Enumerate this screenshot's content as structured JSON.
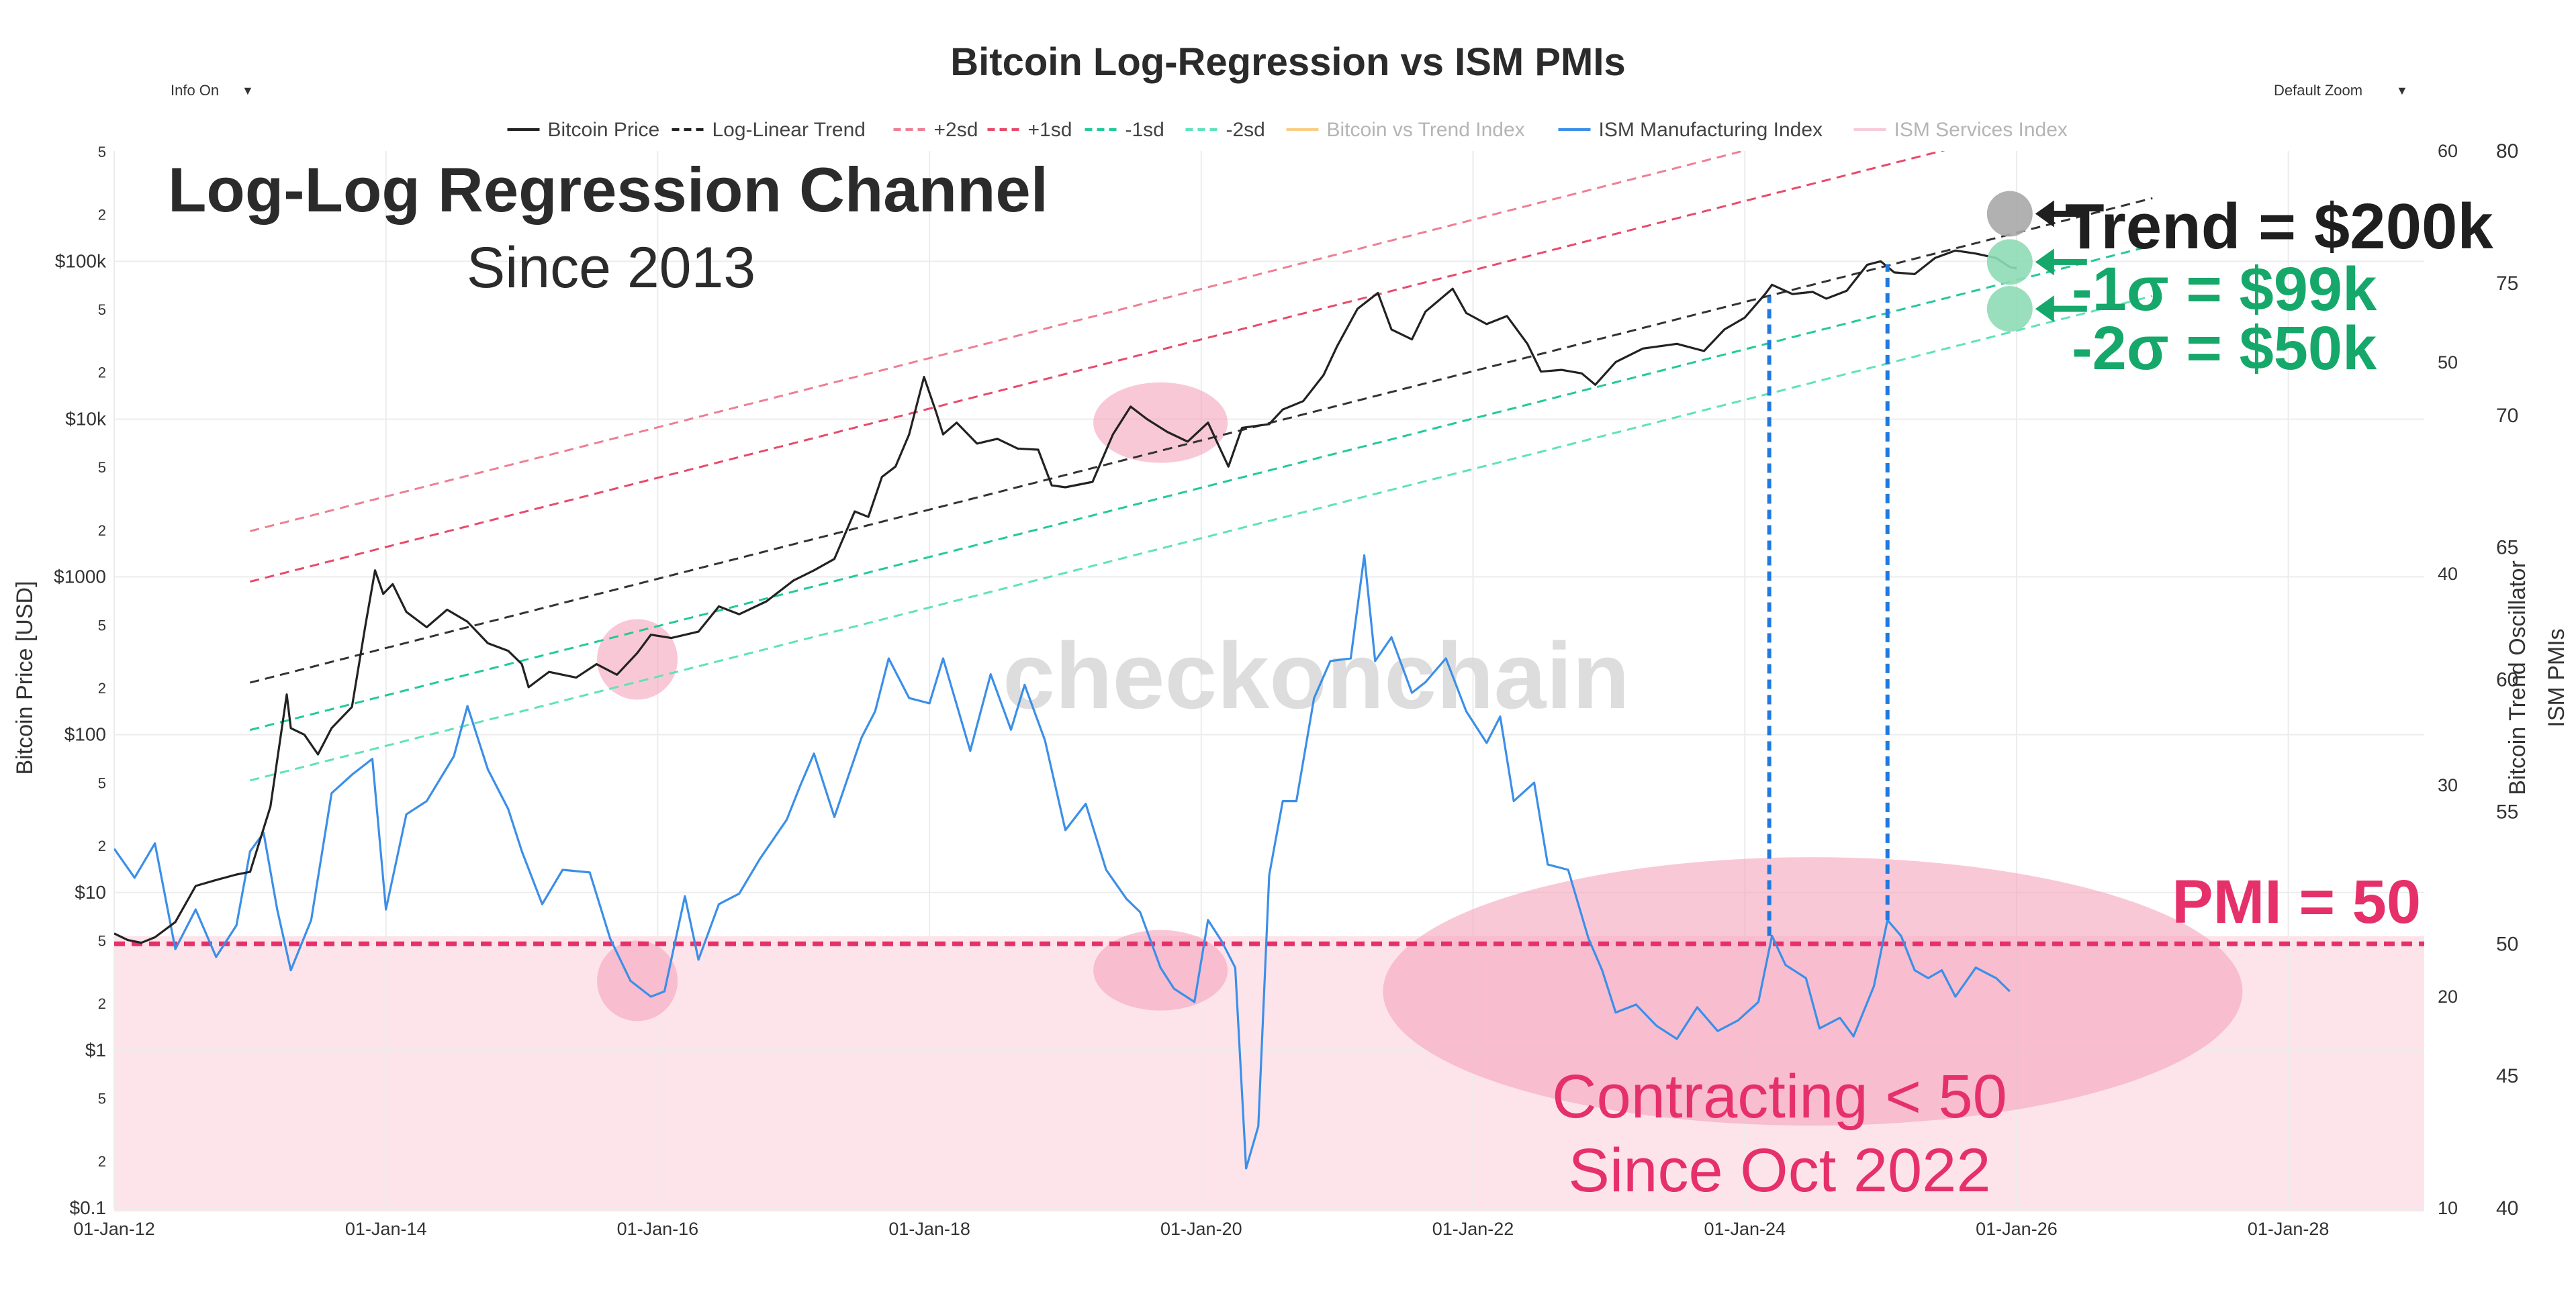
{
  "controls": {
    "info": "Info On",
    "zoom": "Default Zoom",
    "caret": "▼"
  },
  "chart_data": {
    "type": "line",
    "title": "Bitcoin Log-Regression vs ISM PMIs",
    "legend": [
      {
        "name": "Bitcoin Price",
        "color": "#222222",
        "dash": "solid",
        "muted": false
      },
      {
        "name": "Log-Linear Trend",
        "color": "#222222",
        "dash": "dashed",
        "muted": false
      },
      {
        "name": "+2sd",
        "color": "#ee7f93",
        "dash": "dashed",
        "muted": false
      },
      {
        "name": "+1sd",
        "color": "#e84a6a",
        "dash": "dashed",
        "muted": false
      },
      {
        "name": "-1sd",
        "color": "#22c99a",
        "dash": "dashed",
        "muted": false
      },
      {
        "name": "-2sd",
        "color": "#5fe2bb",
        "dash": "dashed",
        "muted": false
      },
      {
        "name": "Bitcoin vs Trend Index",
        "color": "#f5a623",
        "dash": "solid",
        "muted": true
      },
      {
        "name": "ISM Manufacturing Index",
        "color": "#3b8fe8",
        "dash": "solid",
        "muted": false
      },
      {
        "name": "ISM Services Index",
        "color": "#f4a0b8",
        "dash": "solid",
        "muted": true
      }
    ],
    "x_axis": {
      "ticks": [
        "01-Jan-12",
        "01-Jan-14",
        "01-Jan-16",
        "01-Jan-18",
        "01-Jan-20",
        "01-Jan-22",
        "01-Jan-24",
        "01-Jan-26",
        "01-Jan-28"
      ],
      "range": [
        2012.0,
        2029.0
      ]
    },
    "y_price": {
      "label": "Bitcoin Price [USD]",
      "scale": "log",
      "range": [
        0.1,
        500000
      ],
      "ticks": [
        {
          "v": 0.1,
          "t": "$0.1"
        },
        {
          "v": 0.2,
          "t": "2"
        },
        {
          "v": 0.5,
          "t": "5"
        },
        {
          "v": 1,
          "t": "$1"
        },
        {
          "v": 2,
          "t": "2"
        },
        {
          "v": 5,
          "t": "5"
        },
        {
          "v": 10,
          "t": "$10"
        },
        {
          "v": 20,
          "t": "2"
        },
        {
          "v": 50,
          "t": "5"
        },
        {
          "v": 100,
          "t": "$100"
        },
        {
          "v": 200,
          "t": "2"
        },
        {
          "v": 500,
          "t": "5"
        },
        {
          "v": 1000,
          "t": "$1000"
        },
        {
          "v": 2000,
          "t": "2"
        },
        {
          "v": 5000,
          "t": "5"
        },
        {
          "v": 10000,
          "t": "$10k"
        },
        {
          "v": 20000,
          "t": "2"
        },
        {
          "v": 50000,
          "t": "5"
        },
        {
          "v": 100000,
          "t": "$100k"
        },
        {
          "v": 200000,
          "t": "2"
        },
        {
          "v": 500000,
          "t": "5"
        }
      ]
    },
    "y_osc": {
      "label": "Bitcoin Trend Oscillator",
      "range": [
        10,
        60
      ],
      "ticks": [
        "10",
        "20",
        "30",
        "40",
        "50",
        "60"
      ]
    },
    "y_pmi": {
      "label": "ISM PMIs",
      "range": [
        40,
        80
      ],
      "ticks": [
        "40",
        "45",
        "50",
        "55",
        "60",
        "65",
        "70",
        "75",
        "80"
      ]
    },
    "trend": {
      "x": [
        2013.0,
        2027.0
      ],
      "log10_price": [
        2.33,
        5.4
      ]
    },
    "band_offsets_log10": {
      "plus2sd": 0.96,
      "plus1sd": 0.64,
      "minus1sd": -0.3,
      "minus2sd": -0.62
    },
    "btc_price": [
      [
        2012.0,
        5.5
      ],
      [
        2012.1,
        5.0
      ],
      [
        2012.2,
        4.8
      ],
      [
        2012.3,
        5.2
      ],
      [
        2012.45,
        6.5
      ],
      [
        2012.6,
        11
      ],
      [
        2012.75,
        12
      ],
      [
        2012.9,
        13
      ],
      [
        2013.0,
        13.5
      ],
      [
        2013.15,
        35
      ],
      [
        2013.27,
        180
      ],
      [
        2013.3,
        110
      ],
      [
        2013.4,
        100
      ],
      [
        2013.5,
        75
      ],
      [
        2013.6,
        110
      ],
      [
        2013.75,
        150
      ],
      [
        2013.85,
        500
      ],
      [
        2013.92,
        1100
      ],
      [
        2013.98,
        780
      ],
      [
        2014.05,
        900
      ],
      [
        2014.15,
        600
      ],
      [
        2014.3,
        480
      ],
      [
        2014.45,
        620
      ],
      [
        2014.6,
        520
      ],
      [
        2014.75,
        380
      ],
      [
        2014.9,
        340
      ],
      [
        2015.0,
        280
      ],
      [
        2015.05,
        200
      ],
      [
        2015.2,
        250
      ],
      [
        2015.4,
        230
      ],
      [
        2015.55,
        280
      ],
      [
        2015.7,
        240
      ],
      [
        2015.85,
        330
      ],
      [
        2015.95,
        430
      ],
      [
        2016.1,
        410
      ],
      [
        2016.3,
        450
      ],
      [
        2016.45,
        650
      ],
      [
        2016.6,
        580
      ],
      [
        2016.8,
        700
      ],
      [
        2017.0,
        950
      ],
      [
        2017.15,
        1100
      ],
      [
        2017.3,
        1300
      ],
      [
        2017.45,
        2600
      ],
      [
        2017.55,
        2400
      ],
      [
        2017.65,
        4300
      ],
      [
        2017.75,
        5000
      ],
      [
        2017.85,
        8000
      ],
      [
        2017.96,
        18500
      ],
      [
        2018.05,
        11000
      ],
      [
        2018.1,
        8000
      ],
      [
        2018.2,
        9500
      ],
      [
        2018.35,
        7000
      ],
      [
        2018.5,
        7500
      ],
      [
        2018.65,
        6500
      ],
      [
        2018.8,
        6400
      ],
      [
        2018.9,
        3800
      ],
      [
        2019.0,
        3700
      ],
      [
        2019.2,
        4000
      ],
      [
        2019.35,
        8000
      ],
      [
        2019.48,
        12000
      ],
      [
        2019.6,
        10000
      ],
      [
        2019.75,
        8300
      ],
      [
        2019.9,
        7200
      ],
      [
        2020.05,
        9500
      ],
      [
        2020.2,
        5000
      ],
      [
        2020.3,
        8800
      ],
      [
        2020.5,
        9300
      ],
      [
        2020.6,
        11500
      ],
      [
        2020.75,
        13000
      ],
      [
        2020.9,
        19000
      ],
      [
        2021.0,
        29000
      ],
      [
        2021.15,
        50000
      ],
      [
        2021.3,
        63000
      ],
      [
        2021.4,
        37000
      ],
      [
        2021.55,
        32000
      ],
      [
        2021.65,
        48000
      ],
      [
        2021.85,
        67000
      ],
      [
        2021.95,
        47000
      ],
      [
        2022.1,
        40000
      ],
      [
        2022.25,
        45000
      ],
      [
        2022.4,
        30000
      ],
      [
        2022.5,
        20000
      ],
      [
        2022.65,
        20500
      ],
      [
        2022.8,
        19500
      ],
      [
        2022.9,
        16500
      ],
      [
        2023.05,
        23000
      ],
      [
        2023.25,
        28000
      ],
      [
        2023.5,
        30000
      ],
      [
        2023.7,
        27000
      ],
      [
        2023.85,
        37000
      ],
      [
        2024.0,
        44000
      ],
      [
        2024.15,
        62000
      ],
      [
        2024.2,
        71000
      ],
      [
        2024.35,
        62000
      ],
      [
        2024.5,
        64000
      ],
      [
        2024.6,
        58000
      ],
      [
        2024.75,
        65000
      ],
      [
        2024.9,
        95000
      ],
      [
        2025.0,
        100000
      ],
      [
        2025.1,
        85000
      ],
      [
        2025.25,
        83000
      ],
      [
        2025.4,
        105000
      ],
      [
        2025.55,
        117000
      ],
      [
        2025.7,
        112000
      ],
      [
        2025.85,
        105000
      ],
      [
        2025.95,
        92000
      ],
      [
        2026.0,
        90000
      ]
    ],
    "ism_manufacturing": [
      [
        2012.0,
        53.6
      ],
      [
        2012.15,
        52.5
      ],
      [
        2012.3,
        53.8
      ],
      [
        2012.45,
        49.8
      ],
      [
        2012.6,
        51.3
      ],
      [
        2012.75,
        49.5
      ],
      [
        2012.9,
        50.7
      ],
      [
        2013.0,
        53.5
      ],
      [
        2013.1,
        54.2
      ],
      [
        2013.2,
        51.3
      ],
      [
        2013.3,
        49.0
      ],
      [
        2013.45,
        50.9
      ],
      [
        2013.6,
        55.7
      ],
      [
        2013.75,
        56.4
      ],
      [
        2013.9,
        57.0
      ],
      [
        2014.0,
        51.3
      ],
      [
        2014.15,
        54.9
      ],
      [
        2014.3,
        55.4
      ],
      [
        2014.5,
        57.1
      ],
      [
        2014.6,
        59.0
      ],
      [
        2014.75,
        56.6
      ],
      [
        2014.9,
        55.1
      ],
      [
        2015.0,
        53.5
      ],
      [
        2015.15,
        51.5
      ],
      [
        2015.3,
        52.8
      ],
      [
        2015.5,
        52.7
      ],
      [
        2015.65,
        50.2
      ],
      [
        2015.8,
        48.6
      ],
      [
        2015.95,
        48.0
      ],
      [
        2016.05,
        48.2
      ],
      [
        2016.2,
        51.8
      ],
      [
        2016.3,
        49.4
      ],
      [
        2016.45,
        51.5
      ],
      [
        2016.6,
        51.9
      ],
      [
        2016.75,
        53.2
      ],
      [
        2016.95,
        54.7
      ],
      [
        2017.05,
        56.0
      ],
      [
        2017.15,
        57.2
      ],
      [
        2017.3,
        54.8
      ],
      [
        2017.5,
        57.8
      ],
      [
        2017.6,
        58.8
      ],
      [
        2017.7,
        60.8
      ],
      [
        2017.85,
        59.3
      ],
      [
        2018.0,
        59.1
      ],
      [
        2018.1,
        60.8
      ],
      [
        2018.3,
        57.3
      ],
      [
        2018.45,
        60.2
      ],
      [
        2018.6,
        58.1
      ],
      [
        2018.7,
        59.8
      ],
      [
        2018.85,
        57.7
      ],
      [
        2019.0,
        54.3
      ],
      [
        2019.15,
        55.3
      ],
      [
        2019.3,
        52.8
      ],
      [
        2019.45,
        51.7
      ],
      [
        2019.55,
        51.2
      ],
      [
        2019.7,
        49.1
      ],
      [
        2019.8,
        48.3
      ],
      [
        2019.95,
        47.8
      ],
      [
        2020.05,
        50.9
      ],
      [
        2020.15,
        50.1
      ],
      [
        2020.25,
        49.1
      ],
      [
        2020.33,
        41.5
      ],
      [
        2020.42,
        43.1
      ],
      [
        2020.5,
        52.6
      ],
      [
        2020.6,
        55.4
      ],
      [
        2020.7,
        55.4
      ],
      [
        2020.83,
        59.3
      ],
      [
        2020.95,
        60.7
      ],
      [
        2021.1,
        60.8
      ],
      [
        2021.2,
        64.7
      ],
      [
        2021.28,
        60.7
      ],
      [
        2021.4,
        61.6
      ],
      [
        2021.55,
        59.5
      ],
      [
        2021.65,
        59.9
      ],
      [
        2021.8,
        60.8
      ],
      [
        2021.95,
        58.8
      ],
      [
        2022.1,
        57.6
      ],
      [
        2022.2,
        58.6
      ],
      [
        2022.3,
        55.4
      ],
      [
        2022.45,
        56.1
      ],
      [
        2022.55,
        53.0
      ],
      [
        2022.7,
        52.8
      ],
      [
        2022.85,
        50.2
      ],
      [
        2022.95,
        49.0
      ],
      [
        2023.05,
        47.4
      ],
      [
        2023.2,
        47.7
      ],
      [
        2023.35,
        46.9
      ],
      [
        2023.5,
        46.4
      ],
      [
        2023.65,
        47.6
      ],
      [
        2023.8,
        46.7
      ],
      [
        2023.95,
        47.1
      ],
      [
        2024.1,
        47.8
      ],
      [
        2024.2,
        50.3
      ],
      [
        2024.3,
        49.2
      ],
      [
        2024.45,
        48.7
      ],
      [
        2024.55,
        46.8
      ],
      [
        2024.7,
        47.2
      ],
      [
        2024.8,
        46.5
      ],
      [
        2024.95,
        48.4
      ],
      [
        2025.05,
        50.9
      ],
      [
        2025.15,
        50.3
      ],
      [
        2025.25,
        49.0
      ],
      [
        2025.35,
        48.7
      ],
      [
        2025.45,
        49.0
      ],
      [
        2025.55,
        48.0
      ],
      [
        2025.7,
        49.1
      ],
      [
        2025.85,
        48.7
      ],
      [
        2025.95,
        48.2
      ]
    ],
    "pmi_threshold": {
      "value": 50,
      "label": "PMI = 50"
    },
    "annotations": {
      "heading": "Log-Log Regression Channel",
      "subheading": "Since 2013",
      "trend_label": "Trend = $200k",
      "minus1_label": "-1σ = $99k",
      "minus2_label": "-2σ = $50k",
      "contracting_line1": "Contracting < 50",
      "contracting_line2": "Since Oct 2022",
      "watermark": "checkonchain"
    },
    "markers": {
      "trend_value": 200000,
      "minus1_value": 99000,
      "minus2_value": 50000,
      "at_year": 2025.95
    },
    "highlight_regions": [
      {
        "x": 2015.85,
        "y_price": 300
      },
      {
        "x": 2015.85,
        "y_pmi": 48.6
      },
      {
        "x": 2019.7,
        "y_price": 9500
      },
      {
        "x": 2019.7,
        "y_pmi": 49.0
      },
      {
        "x": 2024.5,
        "y_pmi": 48.2
      }
    ],
    "vertical_markers": [
      {
        "x": 2024.18,
        "from_pmi": 50.3,
        "to_price": 60000
      },
      {
        "x": 2025.05,
        "from_pmi": 50.9,
        "to_price": 96000
      }
    ],
    "colors": {
      "title": "#2b2b2b",
      "axis_text": "#333333",
      "pmi": "#e6306a",
      "green": "#15a86a",
      "shade": "#fde4ea",
      "ism": "#3b8fe8"
    }
  }
}
